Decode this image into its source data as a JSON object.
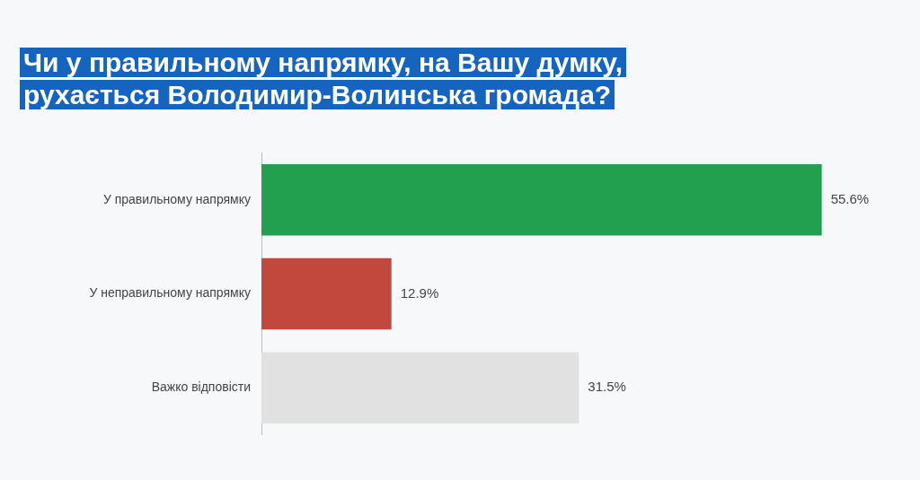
{
  "chart_data": {
    "type": "bar",
    "orientation": "horizontal",
    "title": "Чи у правильному напрямку, на Вашу думку, рухається Володимир-Волинська громада?",
    "categories": [
      "У правильному напрямку",
      "У неправильному напрямку",
      "Важко відповісти"
    ],
    "values": [
      55.6,
      12.9,
      31.5
    ],
    "colors": [
      "#22a050",
      "#c2473c",
      "#e1e1e1"
    ],
    "value_labels": [
      "55.6%",
      "12.9%",
      "31.5%"
    ],
    "grid": false,
    "legend": false,
    "tick_labels": "y"
  }
}
